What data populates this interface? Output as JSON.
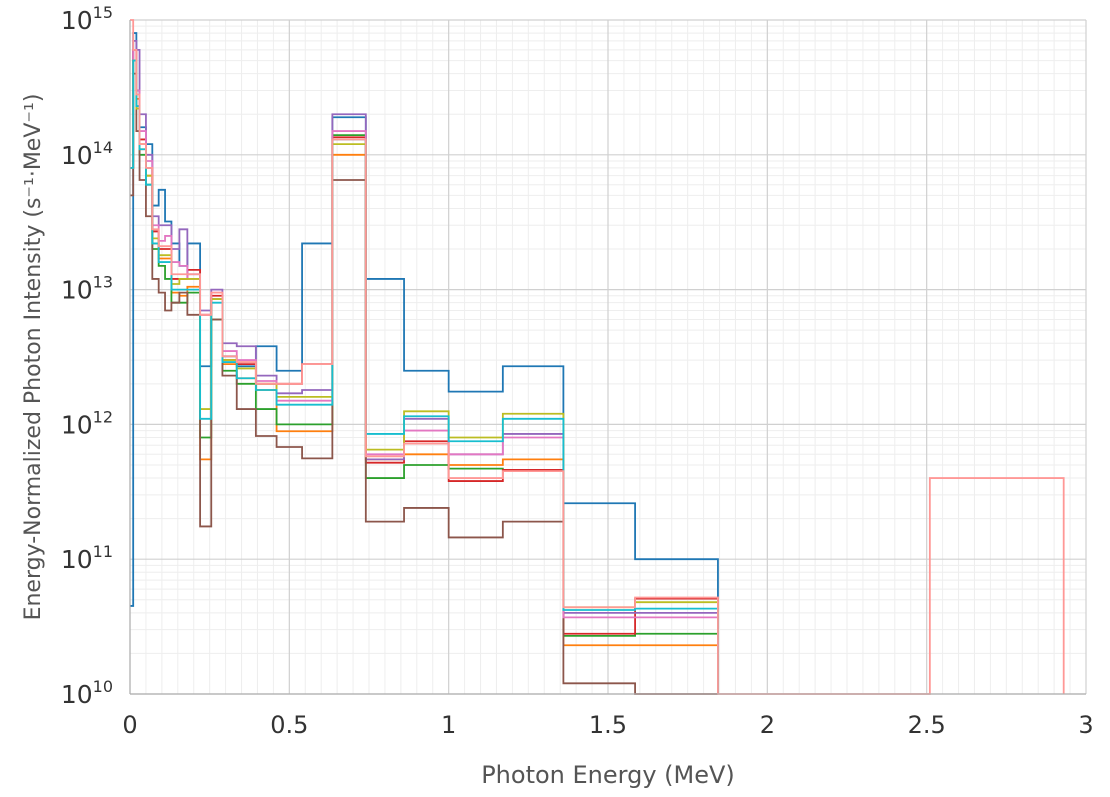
{
  "chart_data": {
    "type": "line",
    "step": true,
    "xlabel": "Photon Energy (MeV)",
    "ylabel": "Energy-Normalized Photon Intensity (s⁻¹·MeV⁻¹)",
    "xlim": [
      0,
      3
    ],
    "ylim": [
      10000000000.0,
      1000000000000000.0
    ],
    "yscale": "log",
    "grid": true,
    "x_ticks": [
      {
        "value": 0,
        "label": "0"
      },
      {
        "value": 0.5,
        "label": "0.5"
      },
      {
        "value": 1,
        "label": "1"
      },
      {
        "value": 1.5,
        "label": "1.5"
      },
      {
        "value": 2,
        "label": "2"
      },
      {
        "value": 2.5,
        "label": "2.5"
      },
      {
        "value": 3,
        "label": "3"
      }
    ],
    "y_ticks": [
      {
        "value": 10000000000.0,
        "base": "10",
        "exp": "10"
      },
      {
        "value": 100000000000.0,
        "base": "10",
        "exp": "11"
      },
      {
        "value": 1000000000000.0,
        "base": "10",
        "exp": "12"
      },
      {
        "value": 10000000000000.0,
        "base": "10",
        "exp": "13"
      },
      {
        "value": 100000000000000.0,
        "base": "10",
        "exp": "14"
      },
      {
        "value": 1000000000000000.0,
        "base": "10",
        "exp": "15"
      }
    ],
    "bin_edges": [
      0,
      0.01,
      0.02,
      0.03,
      0.045,
      0.06,
      0.07,
      0.075,
      0.1,
      0.12,
      0.15,
      0.2,
      0.26,
      0.3,
      0.34,
      0.4,
      0.45,
      0.51,
      0.512,
      0.6,
      0.7,
      0.8,
      0.9,
      1.0,
      1.2,
      1.33,
      1.34,
      1.5,
      1.66,
      2.0,
      2.5,
      3.0
    ],
    "series": [
      {
        "color": "#1f77b4",
        "x": [
          0,
          0.01,
          0.02,
          0.03,
          0.05,
          0.07,
          0.09,
          0.11,
          0.13,
          0.155,
          0.18,
          0.22,
          0.255,
          0.29,
          0.335,
          0.395,
          0.46,
          0.54,
          0.635,
          0.74,
          0.86,
          1.0,
          1.17,
          1.36,
          1.585,
          1.845
        ],
        "y": [
          45000000000.0,
          800000000000000.0,
          300000000000000.0,
          160000000000000.0,
          120000000000000.0,
          42000000000000.0,
          55000000000000.0,
          32000000000000.0,
          22000000000000.0,
          15000000000000.0,
          22000000000000.0,
          2700000000000.0,
          8500000000000.0,
          3200000000000.0,
          2700000000000.0,
          3800000000000.0,
          2500000000000.0,
          22000000000000.0,
          190000000000000.0,
          12000000000000.0,
          2500000000000.0,
          1750000000000.0,
          2700000000000.0,
          260000000000.0,
          100000000000.0,
          10000000000.0
        ]
      },
      {
        "color": "#ff7f0e",
        "x": [
          0,
          0.01,
          0.02,
          0.03,
          0.05,
          0.07,
          0.09,
          0.11,
          0.13,
          0.155,
          0.18,
          0.22,
          0.255,
          0.29,
          0.335,
          0.395,
          0.46,
          0.54,
          0.635,
          0.74,
          0.86,
          1.0,
          1.17,
          1.36,
          1.585,
          1.845
        ],
        "y": [
          80000000000000.0,
          600000000000000.0,
          260000000000000.0,
          120000000000000.0,
          70000000000000.0,
          22000000000000.0,
          17000000000000.0,
          17000000000000.0,
          9500000000000.0,
          9000000000000.0,
          10500000000000.0,
          550000000000.0,
          8500000000000.0,
          2800000000000.0,
          2200000000000.0,
          1800000000000.0,
          890000000000.0,
          890000000000.0,
          100000000000000.0,
          550000000000.0,
          600000000000.0,
          500000000000.0,
          550000000000.0,
          23000000000.0,
          23000000000.0,
          10000000000.0
        ]
      },
      {
        "color": "#2ca02c",
        "x": [
          0,
          0.01,
          0.02,
          0.03,
          0.05,
          0.07,
          0.09,
          0.11,
          0.13,
          0.155,
          0.18,
          0.22,
          0.255,
          0.29,
          0.335,
          0.395,
          0.46,
          0.54,
          0.635,
          0.74,
          0.86,
          1.0,
          1.17,
          1.36,
          1.585,
          1.845
        ],
        "y": [
          80000000000000.0,
          500000000000000.0,
          220000000000000.0,
          100000000000000.0,
          60000000000000.0,
          20000000000000.0,
          15000000000000.0,
          12000000000000.0,
          8000000000000.0,
          8000000000000.0,
          9500000000000.0,
          800000000000.0,
          6000000000000.0,
          2500000000000.0,
          2000000000000.0,
          1300000000000.0,
          1000000000000.0,
          1000000000000.0,
          140000000000000.0,
          400000000000.0,
          500000000000.0,
          470000000000.0,
          460000000000.0,
          27000000000.0,
          28000000000.0,
          10000000000.0
        ]
      },
      {
        "color": "#d62728",
        "x": [
          0,
          0.01,
          0.02,
          0.03,
          0.05,
          0.07,
          0.09,
          0.11,
          0.13,
          0.155,
          0.18,
          0.22,
          0.255,
          0.29,
          0.335,
          0.395,
          0.46,
          0.54,
          0.635,
          0.74,
          0.86,
          1.0,
          1.17,
          1.36,
          1.585,
          1.845
        ],
        "y": [
          80000000000000.0,
          600000000000000.0,
          300000000000000.0,
          130000000000000.0,
          80000000000000.0,
          27000000000000.0,
          20000000000000.0,
          20000000000000.0,
          12000000000000.0,
          12000000000000.0,
          14000000000000.0,
          6500000000000.0,
          9000000000000.0,
          3000000000000.0,
          2800000000000.0,
          2000000000000.0,
          2000000000000.0,
          2800000000000.0,
          135000000000000.0,
          520000000000.0,
          750000000000.0,
          380000000000.0,
          460000000000.0,
          28000000000.0,
          51000000000.0,
          10000000000.0
        ]
      },
      {
        "color": "#9467bd",
        "x": [
          0,
          0.01,
          0.02,
          0.03,
          0.05,
          0.07,
          0.09,
          0.11,
          0.13,
          0.155,
          0.18,
          0.22,
          0.255,
          0.29,
          0.335,
          0.395,
          0.46,
          0.54,
          0.635,
          0.74,
          0.86,
          1.0,
          1.17,
          1.36,
          1.585,
          1.845
        ],
        "y": [
          80000000000000.0,
          700000000000000.0,
          600000000000000.0,
          200000000000000.0,
          100000000000000.0,
          35000000000000.0,
          30000000000000.0,
          30000000000000.0,
          20000000000000.0,
          28000000000000.0,
          13000000000000.0,
          7000000000000.0,
          10000000000000.0,
          4000000000000.0,
          3800000000000.0,
          2300000000000.0,
          1700000000000.0,
          1800000000000.0,
          200000000000000.0,
          550000000000.0,
          1100000000000.0,
          600000000000.0,
          850000000000.0,
          40000000000.0,
          40000000000.0,
          10000000000.0
        ]
      },
      {
        "color": "#8c564b",
        "x": [
          0,
          0.01,
          0.02,
          0.03,
          0.05,
          0.07,
          0.09,
          0.11,
          0.13,
          0.155,
          0.18,
          0.22,
          0.255,
          0.29,
          0.335,
          0.395,
          0.46,
          0.54,
          0.635,
          0.74,
          0.86,
          1.0,
          1.17,
          1.36,
          1.585,
          1.845
        ],
        "y": [
          50000000000000.0,
          400000000000000.0,
          150000000000000.0,
          65000000000000.0,
          35000000000000.0,
          12000000000000.0,
          9500000000000.0,
          7000000000000.0,
          8000000000000.0,
          9500000000000.0,
          6500000000000.0,
          175000000000.0,
          6000000000000.0,
          2300000000000.0,
          1300000000000.0,
          820000000000.0,
          680000000000.0,
          560000000000.0,
          65000000000000.0,
          190000000000.0,
          240000000000.0,
          145000000000.0,
          190000000000.0,
          12000000000.0,
          10000000000.0,
          10000000000.0
        ]
      },
      {
        "color": "#e377c2",
        "x": [
          0,
          0.01,
          0.02,
          0.03,
          0.05,
          0.07,
          0.09,
          0.11,
          0.13,
          0.155,
          0.18,
          0.22,
          0.255,
          0.29,
          0.335,
          0.395,
          0.46,
          0.54,
          0.635,
          0.74,
          0.86,
          1.0,
          1.17,
          1.36,
          1.585,
          1.845
        ],
        "y": [
          80000000000000.0,
          600000000000000.0,
          300000000000000.0,
          150000000000000.0,
          90000000000000.0,
          30000000000000.0,
          23000000000000.0,
          25000000000000.0,
          16000000000000.0,
          15000000000000.0,
          12000000000000.0,
          6500000000000.0,
          9500000000000.0,
          3500000000000.0,
          3000000000000.0,
          2100000000000.0,
          1500000000000.0,
          1500000000000.0,
          150000000000000.0,
          600000000000.0,
          900000000000.0,
          600000000000.0,
          800000000000.0,
          37000000000.0,
          37000000000.0,
          10000000000.0
        ]
      },
      {
        "color": "#bcbd22",
        "x": [
          0,
          0.01,
          0.02,
          0.03,
          0.05,
          0.07,
          0.09,
          0.11,
          0.13,
          0.155,
          0.18,
          0.22,
          0.255,
          0.29,
          0.335,
          0.395,
          0.46,
          0.54,
          0.635,
          0.74,
          0.86,
          1.0,
          1.17,
          1.36,
          1.585,
          1.845
        ],
        "y": [
          80000000000000.0,
          500000000000000.0,
          220000000000000.0,
          110000000000000.0,
          70000000000000.0,
          24000000000000.0,
          18000000000000.0,
          18000000000000.0,
          11000000000000.0,
          12000000000000.0,
          12000000000000.0,
          1300000000000.0,
          8500000000000.0,
          3000000000000.0,
          2600000000000.0,
          2000000000000.0,
          1600000000000.0,
          1600000000000.0,
          120000000000000.0,
          650000000000.0,
          1250000000000.0,
          800000000000.0,
          1200000000000.0,
          44000000000.0,
          48000000000.0,
          10000000000.0
        ]
      },
      {
        "color": "#17becf",
        "x": [
          0,
          0.01,
          0.02,
          0.03,
          0.05,
          0.07,
          0.09,
          0.11,
          0.13,
          0.155,
          0.18,
          0.22,
          0.255,
          0.29,
          0.335,
          0.395,
          0.46,
          0.54,
          0.635,
          0.74,
          0.86,
          1.0,
          1.17,
          1.36,
          1.585,
          1.845
        ],
        "y": [
          80000000000000.0,
          500000000000000.0,
          230000000000000.0,
          110000000000000.0,
          60000000000000.0,
          22000000000000.0,
          16000000000000.0,
          16000000000000.0,
          10000000000000.0,
          10000000000000.0,
          10000000000000.0,
          1100000000000.0,
          8000000000000.0,
          2900000000000.0,
          2200000000000.0,
          1800000000000.0,
          1400000000000.0,
          1400000000000.0,
          130000000000000.0,
          850000000000.0,
          1150000000000.0,
          750000000000.0,
          1100000000000.0,
          42000000000.0,
          43000000000.0,
          10000000000.0
        ]
      },
      {
        "color": "#ff9896",
        "x": [
          0,
          0.01,
          0.02,
          0.03,
          0.05,
          0.07,
          0.09,
          0.11,
          0.13,
          0.155,
          0.18,
          0.22,
          0.255,
          0.29,
          0.335,
          0.395,
          0.46,
          0.54,
          0.635,
          0.74,
          0.86,
          1.0,
          1.17,
          1.36,
          1.585,
          1.845,
          2.51,
          2.93
        ],
        "y": [
          1000000000000000.0,
          600000000000000.0,
          280000000000000.0,
          120000000000000.0,
          80000000000000.0,
          28000000000000.0,
          21000000000000.0,
          21000000000000.0,
          13000000000000.0,
          13000000000000.0,
          13000000000000.0,
          6500000000000.0,
          9500000000000.0,
          3200000000000.0,
          2900000000000.0,
          2000000000000.0,
          2000000000000.0,
          2800000000000.0,
          130000000000000.0,
          580000000000.0,
          720000000000.0,
          400000000000.0,
          450000000000.0,
          44000000000.0,
          52000000000.0,
          10000000000.0,
          400000000000.0,
          10000000000.0
        ]
      }
    ]
  }
}
